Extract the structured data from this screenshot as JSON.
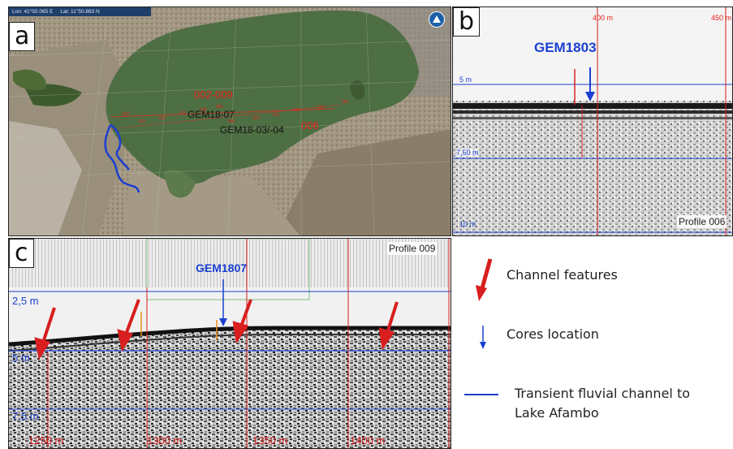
{
  "panel_a": {
    "label": "a",
    "coord_lon": "Lon: 41°50.065 E",
    "coord_lat": "Lat: 11°50.883 N",
    "site_range": "002-009",
    "core_label_1": "GEM18-07",
    "core_label_2": "GEM18-03/-04",
    "profile_006": "006"
  },
  "panel_b": {
    "label": "b",
    "core": "GEM1803",
    "tick_400": "400 m",
    "tick_450": "450 m",
    "depth_5": "5 m",
    "depth_750": "7,50 m",
    "depth_10": "10 m",
    "profile": "Profile 006"
  },
  "panel_c": {
    "label": "c",
    "core": "GEM1807",
    "profile": "Profile 009",
    "depth_25": "2,5 m",
    "depth_5": "5 m",
    "depth_75": "7,5 m",
    "x_1250": "1250 m",
    "x_1300": "1300 m",
    "x_1350": "1350 m",
    "x_1400": "1400 m"
  },
  "legend": {
    "channel": "Channel features",
    "cores": "Cores location",
    "fluvial_1": "Transient fluvial channel to",
    "fluvial_2": "Lake Afambo"
  },
  "colors": {
    "red_label": "#e8201a",
    "blue_label": "#1a3fd0",
    "arrow_red": "#d81e1e",
    "lake_green": "#4e6e43"
  }
}
